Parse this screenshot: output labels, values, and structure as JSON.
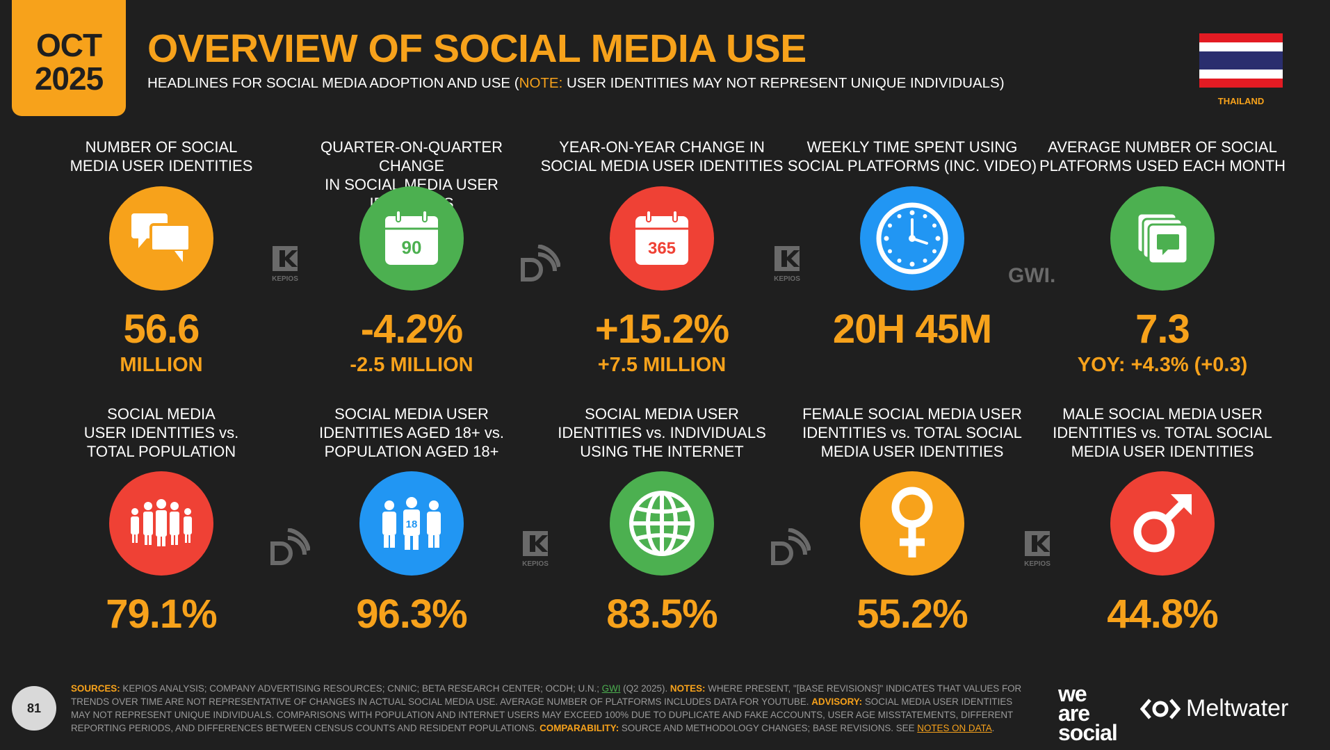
{
  "header": {
    "month": "OCT",
    "year": "2025",
    "title": "OVERVIEW OF SOCIAL MEDIA USE",
    "subtitle_pre": "HEADLINES FOR SOCIAL MEDIA ADOPTION AND USE (",
    "subtitle_note": "NOTE:",
    "subtitle_post": " USER IDENTITIES MAY NOT REPRESENT UNIQUE INDIVIDUALS)",
    "country": "THAILAND"
  },
  "colors": {
    "accent": "#f7a21b",
    "background": "#1f1f1f",
    "orange": "#f7a21b",
    "green": "#4cb050",
    "red": "#ef4135",
    "blue": "#2196f3",
    "flag_red": "#e31b23",
    "flag_blue": "#2a2e6e"
  },
  "stats_row1": [
    {
      "label1": "NUMBER OF SOCIAL",
      "label2": "MEDIA USER IDENTITIES",
      "value": "56.6",
      "sub": "MILLION",
      "icon": "speech-bubbles-icon"
    },
    {
      "label1": "QUARTER-ON-QUARTER CHANGE",
      "label2": "IN SOCIAL MEDIA USER IDENTITIES",
      "value": "-4.2%",
      "sub": "-2.5 MILLION",
      "icon": "calendar-90-icon",
      "icon_text": "90"
    },
    {
      "label1": "YEAR-ON-YEAR CHANGE IN",
      "label2": "SOCIAL MEDIA USER IDENTITIES",
      "value": "+15.2%",
      "sub": "+7.5 MILLION",
      "icon": "calendar-365-icon",
      "icon_text": "365"
    },
    {
      "label1": "WEEKLY TIME SPENT USING",
      "label2": "SOCIAL PLATFORMS (INC. VIDEO)",
      "value": "20H 45M",
      "sub": "",
      "icon": "clock-icon"
    },
    {
      "label1": "AVERAGE NUMBER OF SOCIAL",
      "label2": "PLATFORMS USED EACH MONTH",
      "value": "7.3",
      "sub": "YOY: +4.3% (+0.3)",
      "icon": "stacked-cards-icon"
    }
  ],
  "stats_row2": [
    {
      "label1": "SOCIAL MEDIA",
      "label2": "USER IDENTITIES vs.",
      "label3": "TOTAL POPULATION",
      "value": "79.1%",
      "icon": "people-group-icon"
    },
    {
      "label1": "SOCIAL MEDIA USER",
      "label2": "IDENTITIES AGED 18+ vs.",
      "label3": "POPULATION AGED 18+",
      "value": "96.3%",
      "icon": "people-18-icon",
      "icon_text": "18"
    },
    {
      "label1": "SOCIAL MEDIA USER",
      "label2": "IDENTITIES vs. INDIVIDUALS",
      "label3": "USING THE INTERNET",
      "value": "83.5%",
      "icon": "globe-icon"
    },
    {
      "label1": "FEMALE SOCIAL MEDIA USER",
      "label2": "IDENTITIES vs. TOTAL SOCIAL",
      "label3": "MEDIA USER IDENTITIES",
      "value": "55.2%",
      "icon": "female-symbol-icon"
    },
    {
      "label1": "MALE SOCIAL MEDIA USER",
      "label2": "IDENTITIES vs. TOTAL SOCIAL",
      "label3": "MEDIA USER IDENTITIES",
      "value": "44.8%",
      "icon": "male-symbol-icon"
    }
  ],
  "source_logos": {
    "kepios": "KEPIOS",
    "gwi": "GWI."
  },
  "footer": {
    "page": "81",
    "sources_label": "SOURCES:",
    "sources_text": " KEPIOS ANALYSIS; COMPANY ADVERTISING RESOURCES; CNNIC; BETA RESEARCH CENTER; OCDH; U.N.; ",
    "gwi": "GWI",
    "sources_text2": " (Q2 2025). ",
    "notes_label": "NOTES:",
    "notes_text": " WHERE PRESENT, \"[BASE REVISIONS]\" INDICATES THAT VALUES FOR TRENDS OVER TIME ARE NOT REPRESENTATIVE OF CHANGES IN ACTUAL SOCIAL MEDIA USE. AVERAGE NUMBER OF PLATFORMS INCLUDES DATA FOR YOUTUBE. ",
    "advisory_label": "ADVISORY:",
    "advisory_text": " SOCIAL MEDIA USER IDENTITIES MAY NOT REPRESENT UNIQUE INDIVIDUALS. COMPARISONS WITH POPULATION AND INTERNET USERS MAY EXCEED 100% DUE TO DUPLICATE AND FAKE ACCOUNTS, USER AGE MISSTATEMENTS, DIFFERENT REPORTING PERIODS, AND DIFFERENCES BETWEEN CENSUS COUNTS AND RESIDENT POPULATIONS. ",
    "comparability_label": "COMPARABILITY:",
    "comparability_text": " SOURCE AND METHODOLOGY CHANGES; BASE REVISIONS. SEE ",
    "notes_link": "NOTES ON DATA",
    "end": ".",
    "brand1_l1": "we",
    "brand1_l2": "are",
    "brand1_l3": "social",
    "brand2": "Meltwater"
  }
}
